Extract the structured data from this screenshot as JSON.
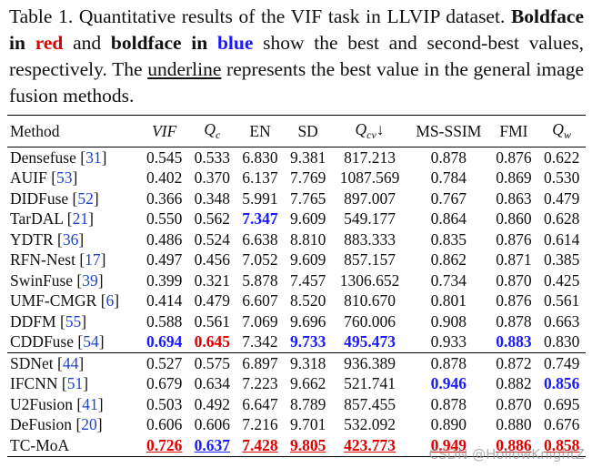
{
  "caption": {
    "prefix": "Table 1.  Quantitative results of the VIF task in LLVIP dataset.",
    "bf1": "Boldface in ",
    "red_word": "red",
    "and_text": " and ",
    "bf2": "boldface in ",
    "blue_word": "blue",
    "mid": " show the best and second-best values, respectively. The ",
    "underline_word": "underline",
    "suffix": " represents the best value in the general image fusion methods."
  },
  "table": {
    "headers": [
      "Method",
      "VIF",
      "Q",
      "EN",
      "SD",
      "Q",
      "MS-SSIM",
      "FMI",
      "Q"
    ],
    "header_subs": {
      "qc": "c",
      "qcv": "cv",
      "qw": "w"
    },
    "arrow": "↓",
    "group1": [
      {
        "method": "Densefuse",
        "ref": "31",
        "vals": [
          "0.545",
          "0.533",
          "6.830",
          "9.381",
          "817.213",
          "0.878",
          "0.876",
          "0.622"
        ]
      },
      {
        "method": "AUIF",
        "ref": "53",
        "vals": [
          "0.402",
          "0.370",
          "6.137",
          "7.769",
          "1087.569",
          "0.784",
          "0.869",
          "0.530"
        ]
      },
      {
        "method": "DIDFuse",
        "ref": "52",
        "vals": [
          "0.366",
          "0.348",
          "5.991",
          "7.765",
          "897.007",
          "0.767",
          "0.863",
          "0.479"
        ]
      },
      {
        "method": "TarDAL",
        "ref": "21",
        "vals": [
          "0.550",
          "0.562",
          "7.347",
          "9.609",
          "549.177",
          "0.864",
          "0.860",
          "0.628"
        ]
      },
      {
        "method": "YDTR",
        "ref": "36",
        "vals": [
          "0.486",
          "0.524",
          "6.638",
          "8.810",
          "883.333",
          "0.835",
          "0.876",
          "0.614"
        ]
      },
      {
        "method": "RFN-Nest",
        "ref": "17",
        "vals": [
          "0.497",
          "0.456",
          "7.052",
          "9.609",
          "857.157",
          "0.862",
          "0.871",
          "0.385"
        ]
      },
      {
        "method": "SwinFuse",
        "ref": "39",
        "vals": [
          "0.399",
          "0.321",
          "5.878",
          "7.457",
          "1306.652",
          "0.734",
          "0.870",
          "0.425"
        ]
      },
      {
        "method": "UMF-CMGR",
        "ref": "6",
        "vals": [
          "0.414",
          "0.479",
          "6.607",
          "8.520",
          "810.670",
          "0.801",
          "0.876",
          "0.561"
        ]
      },
      {
        "method": "DDFM",
        "ref": "55",
        "vals": [
          "0.588",
          "0.561",
          "7.069",
          "9.696",
          "760.006",
          "0.908",
          "0.878",
          "0.663"
        ]
      },
      {
        "method": "CDDFuse",
        "ref": "54",
        "vals": [
          "0.694",
          "0.645",
          "7.342",
          "9.733",
          "495.473",
          "0.933",
          "0.883",
          "0.830"
        ]
      }
    ],
    "group2": [
      {
        "method": "SDNet",
        "ref": "44",
        "vals": [
          "0.527",
          "0.575",
          "6.897",
          "9.318",
          "936.389",
          "0.878",
          "0.872",
          "0.749"
        ]
      },
      {
        "method": "IFCNN",
        "ref": "51",
        "vals": [
          "0.679",
          "0.634",
          "7.223",
          "9.662",
          "521.741",
          "0.946",
          "0.882",
          "0.856"
        ]
      },
      {
        "method": "U2Fusion",
        "ref": "41",
        "vals": [
          "0.503",
          "0.492",
          "6.647",
          "8.789",
          "857.455",
          "0.878",
          "0.870",
          "0.695"
        ]
      },
      {
        "method": "DeFusion",
        "ref": "20",
        "vals": [
          "0.606",
          "0.606",
          "7.216",
          "9.701",
          "532.092",
          "0.890",
          "0.880",
          "0.676"
        ]
      }
    ],
    "final": {
      "method": "TC-MoA",
      "vals": [
        "0.726",
        "0.637",
        "7.428",
        "9.805",
        "423.773",
        "0.949",
        "0.886",
        "0.858"
      ]
    }
  },
  "colors": {
    "best": "#e00000",
    "second": "#1a1aff",
    "cite": "#2244cc"
  },
  "watermark": "CSDN @HollowKnightZ"
}
